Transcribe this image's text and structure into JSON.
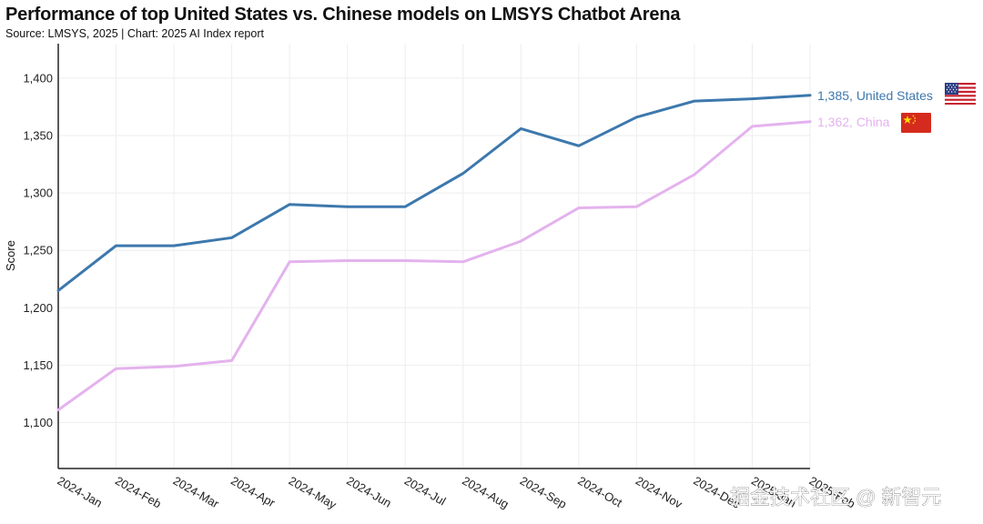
{
  "header": {
    "title": "Performance of top United States vs. Chinese models on LMSYS Chatbot Arena",
    "subtitle": "Source: LMSYS, 2025 | Chart: 2025 AI Index report"
  },
  "watermark": "掘金技术社区 @ 新智元",
  "colors": {
    "united_states": "#3d78ad",
    "china": "#e4b2ee",
    "grid": "#eeeeee",
    "axis": "#222222"
  },
  "chart_data": {
    "type": "line",
    "title": "Performance of top United States vs. Chinese models on LMSYS Chatbot Arena",
    "subtitle": "Source: LMSYS, 2025 | Chart: 2025 AI Index report",
    "xlabel": "",
    "ylabel": "Score",
    "ylim": [
      1060,
      1430
    ],
    "yticks": [
      1100,
      1150,
      1200,
      1250,
      1300,
      1350,
      1400
    ],
    "ytick_labels": [
      "1,100",
      "1,150",
      "1,200",
      "1,250",
      "1,300",
      "1,350",
      "1,400"
    ],
    "categories": [
      "2024-Jan",
      "2024-Feb",
      "2024-Mar",
      "2024-Apr",
      "2024-May",
      "2024-Jun",
      "2024-Jul",
      "2024-Aug",
      "2024-Sep",
      "2024-Oct",
      "2024-Nov",
      "2024-Dec",
      "2025-Jan",
      "2025-Feb"
    ],
    "x_labels": [
      "2024-Jan",
      "2024-Feb",
      "2024-Mar",
      "2024-Apr",
      "2024-May",
      "2024-Jun",
      "2024-Jul",
      "2024-Aug",
      "2024-Sep",
      "2024-Oct",
      "2024-Nov",
      "2024-Dec",
      "2025-Jan",
      "2025-Feb"
    ],
    "grid": true,
    "legend": "end-labels",
    "series": [
      {
        "name": "United States",
        "color": "#3d78ad",
        "end_label": "1,385, United States",
        "icon": "us-flag-icon",
        "values": [
          1215,
          1254,
          1254,
          1261,
          1290,
          1288,
          1288,
          1317,
          1356,
          1341,
          1366,
          1380,
          1382,
          1385
        ]
      },
      {
        "name": "China",
        "color": "#e4b2ee",
        "end_label": "1,362, China",
        "icon": "china-flag-icon",
        "values": [
          1111,
          1147,
          1149,
          1154,
          1240,
          1241,
          1241,
          1240,
          1258,
          1287,
          1288,
          1316,
          1358,
          1362
        ]
      }
    ]
  }
}
